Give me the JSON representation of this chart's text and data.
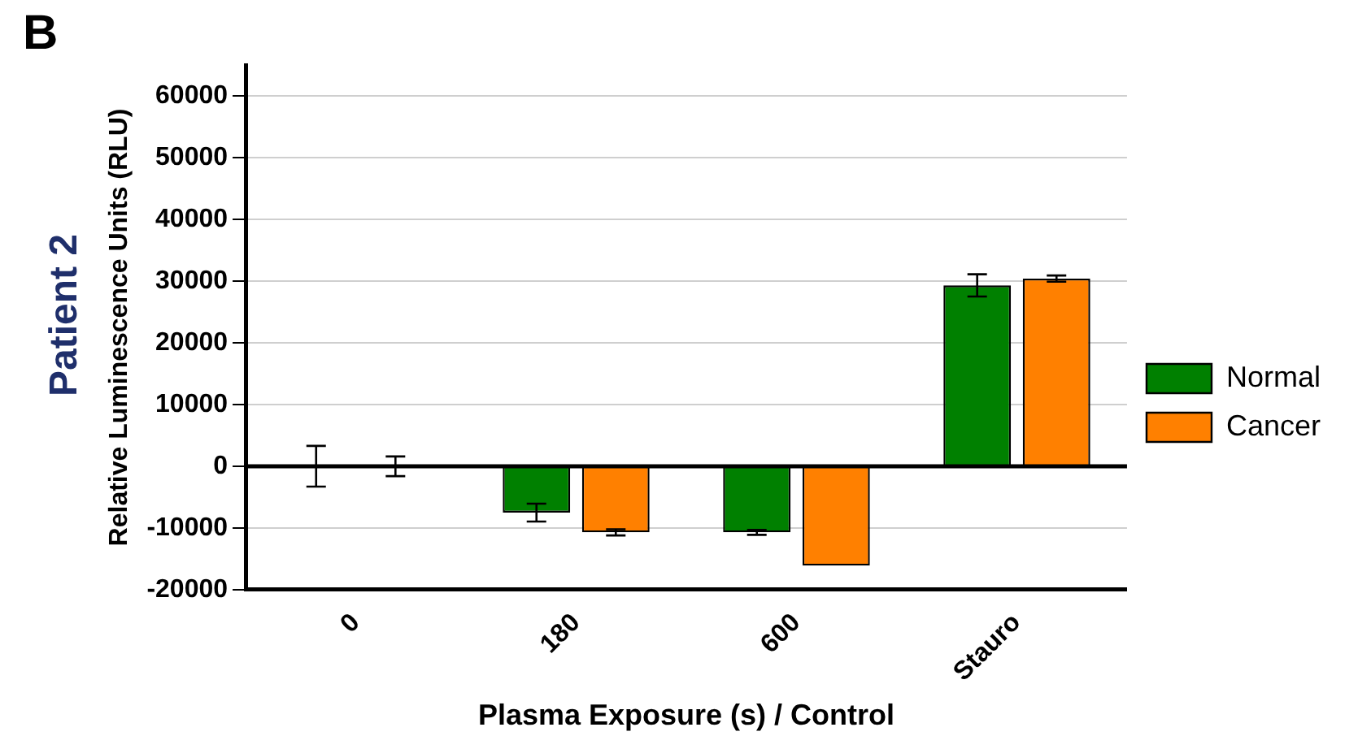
{
  "chart_data": {
    "type": "bar",
    "xlabel": "Plasma Exposure (s) / Control",
    "ylabel": "Relative Luminescence Units (RLU)",
    "annotations": [
      "B",
      "Patient 2"
    ],
    "categories": [
      "0",
      "180",
      "600",
      "Stauro"
    ],
    "series": [
      {
        "name": "Normal",
        "color": "#008000",
        "values": [
          0,
          -7500,
          -10700,
          29300
        ],
        "errors": [
          3300,
          1450,
          400,
          1800
        ]
      },
      {
        "name": "Cancer",
        "color": "#ff8000",
        "values": [
          0,
          -10700,
          -16100,
          30400
        ],
        "errors": [
          1600,
          500,
          null,
          500
        ]
      }
    ],
    "ylim": [
      -20000,
      65000
    ],
    "yticks": [
      -20000,
      -10000,
      0,
      10000,
      20000,
      30000,
      40000,
      50000,
      60000
    ],
    "grid": "y",
    "legend": "right"
  }
}
